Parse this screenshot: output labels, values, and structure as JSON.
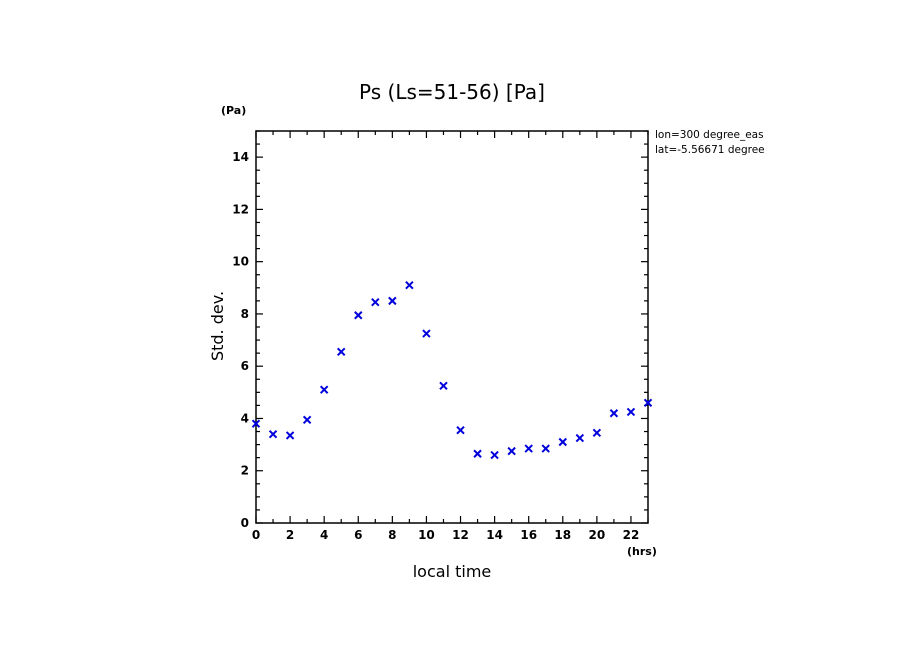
{
  "chart_data": {
    "type": "scatter",
    "title": "Ps (Ls=51-56) [Pa]",
    "xlabel": "local time",
    "ylabel": "Std. dev.",
    "x_unit": "(hrs)",
    "y_unit": "(Pa)",
    "xlim": [
      0,
      23
    ],
    "ylim": [
      0,
      15
    ],
    "x_ticks": [
      0,
      2,
      4,
      6,
      8,
      10,
      12,
      14,
      16,
      18,
      20,
      22
    ],
    "y_ticks": [
      0,
      2,
      4,
      6,
      8,
      10,
      12,
      14
    ],
    "annotations": [
      "lon=300 degree_eas",
      "lat=-5.56671 degree"
    ],
    "grid": false,
    "marker": "x",
    "color": "#0000dd",
    "series": [
      {
        "x": [
          0,
          1,
          2,
          3,
          4,
          5,
          6,
          7,
          8,
          9,
          10,
          11,
          12,
          13,
          14,
          15,
          16,
          17,
          18,
          19,
          20,
          21,
          22,
          23
        ],
        "values": [
          3.8,
          3.4,
          3.35,
          3.95,
          5.1,
          6.55,
          7.95,
          8.45,
          8.5,
          9.1,
          7.25,
          5.25,
          3.55,
          2.65,
          2.6,
          2.75,
          2.85,
          2.85,
          3.1,
          3.25,
          3.45,
          4.2,
          4.25,
          4.6
        ]
      }
    ]
  }
}
